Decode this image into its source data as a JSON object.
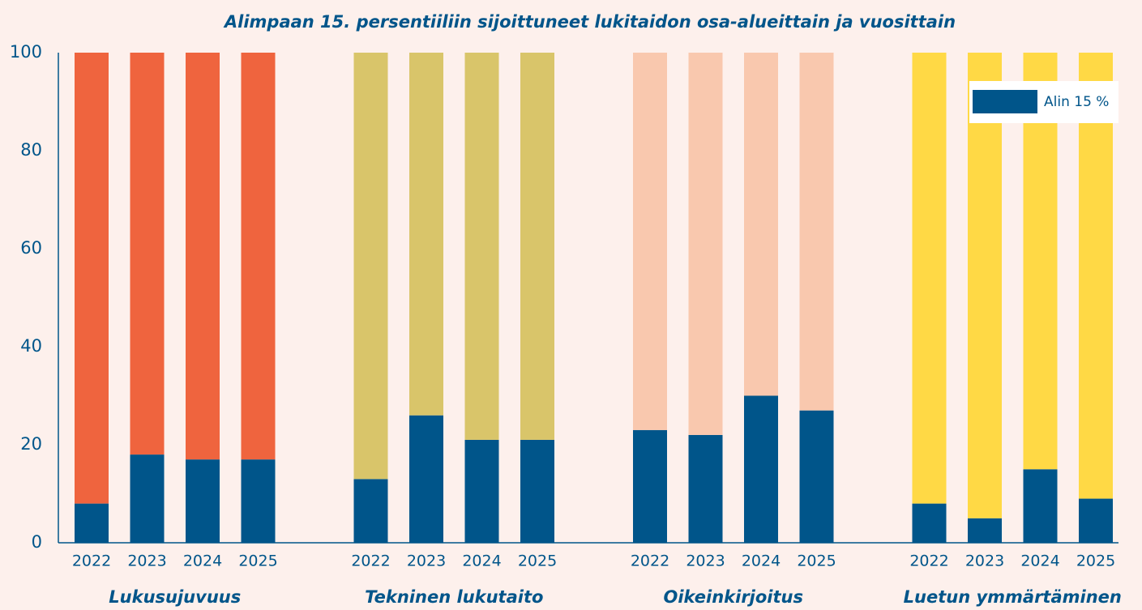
{
  "chart_data": {
    "type": "bar",
    "stacked": true,
    "title": "Alimpaan 15. persentiiliin sijoittuneet lukitaidon osa-alueittain ja vuosittain",
    "groups": [
      "Lukusujuvuus",
      "Tekninen lukutaito",
      "Oikeinkirjoitus",
      "Luetun ymmärtäminen"
    ],
    "categories": [
      "2022",
      "2023",
      "2024",
      "2025",
      "2022",
      "2023",
      "2024",
      "2025",
      "2022",
      "2023",
      "2024",
      "2025",
      "2022",
      "2023",
      "2024",
      "2025"
    ],
    "series": [
      {
        "name": "Alin 15 %",
        "color": "#00558a",
        "values": [
          8,
          18,
          17,
          17,
          13,
          26,
          21,
          21,
          23,
          22,
          30,
          27,
          8,
          5,
          15,
          9
        ]
      },
      {
        "colors": [
          "#ef643e",
          "#d9c56a",
          "#f9c8ae",
          "#ffd945"
        ],
        "values": [
          92,
          82,
          83,
          83,
          87,
          74,
          79,
          79,
          77,
          78,
          70,
          73,
          92,
          95,
          85,
          91
        ]
      }
    ],
    "ylim": [
      0,
      100
    ],
    "yticks": [
      0,
      20,
      40,
      60,
      80,
      100
    ],
    "grid": false,
    "legend": "upper right"
  }
}
